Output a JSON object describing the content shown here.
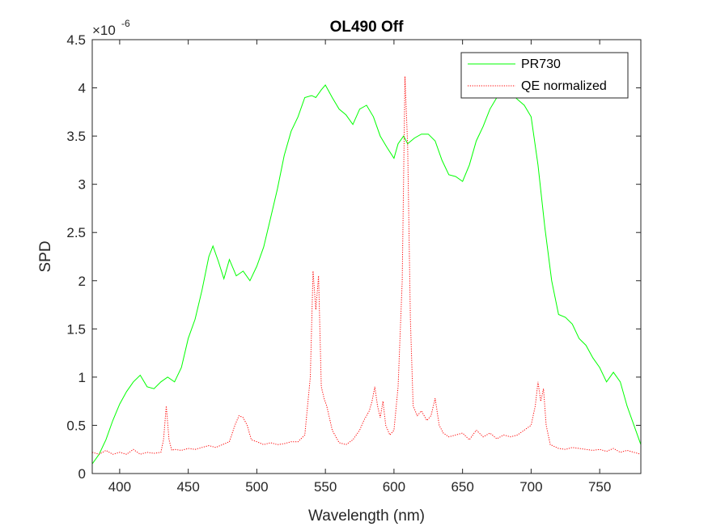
{
  "chart_data": {
    "type": "line",
    "title": "OL490 Off",
    "xlabel": "Wavelength (nm)",
    "ylabel": "SPD",
    "xlim": [
      380,
      780
    ],
    "ylim": [
      0,
      4.5
    ],
    "y_exponent_label": "×10",
    "y_exponent_power": "-6",
    "xticks": [
      400,
      450,
      500,
      550,
      600,
      650,
      700,
      750
    ],
    "xtick_labels": [
      "400",
      "450",
      "500",
      "550",
      "600",
      "650",
      "700",
      "750"
    ],
    "yticks": [
      0,
      0.5,
      1,
      1.5,
      2,
      2.5,
      3,
      3.5,
      4,
      4.5
    ],
    "ytick_labels": [
      "0",
      "0.5",
      "1",
      "1.5",
      "2",
      "2.5",
      "3",
      "3.5",
      "4",
      "4.5"
    ],
    "grid": false,
    "legend_position": "top-right",
    "series": [
      {
        "name": "PR730",
        "color": "#00ff00",
        "style": "solid",
        "x": [
          380,
          385,
          390,
          395,
          400,
          405,
          410,
          415,
          420,
          425,
          430,
          435,
          440,
          445,
          450,
          455,
          460,
          465,
          468,
          472,
          476,
          480,
          485,
          490,
          495,
          500,
          505,
          510,
          515,
          520,
          525,
          530,
          535,
          540,
          543,
          547,
          550,
          555,
          560,
          565,
          570,
          575,
          580,
          585,
          590,
          595,
          600,
          603,
          607,
          610,
          615,
          620,
          625,
          630,
          635,
          640,
          645,
          650,
          655,
          660,
          665,
          670,
          675,
          680,
          685,
          690,
          695,
          700,
          705,
          710,
          715,
          720,
          725,
          730,
          735,
          740,
          745,
          750,
          755,
          760,
          765,
          770,
          775,
          780
        ],
        "y": [
          0.1,
          0.2,
          0.35,
          0.55,
          0.72,
          0.85,
          0.95,
          1.02,
          0.9,
          0.88,
          0.95,
          1.0,
          0.95,
          1.1,
          1.4,
          1.6,
          1.9,
          2.25,
          2.36,
          2.2,
          2.02,
          2.22,
          2.05,
          2.1,
          2.0,
          2.15,
          2.35,
          2.65,
          2.95,
          3.3,
          3.55,
          3.7,
          3.9,
          3.92,
          3.9,
          3.98,
          4.03,
          3.9,
          3.78,
          3.72,
          3.62,
          3.78,
          3.82,
          3.7,
          3.5,
          3.38,
          3.27,
          3.42,
          3.5,
          3.42,
          3.48,
          3.52,
          3.52,
          3.45,
          3.25,
          3.1,
          3.08,
          3.03,
          3.2,
          3.45,
          3.6,
          3.78,
          3.9,
          4.02,
          3.95,
          3.88,
          3.82,
          3.7,
          3.2,
          2.55,
          2.0,
          1.65,
          1.62,
          1.55,
          1.4,
          1.33,
          1.2,
          1.1,
          0.95,
          1.05,
          0.95,
          0.7,
          0.5,
          0.3
        ]
      },
      {
        "name": "QE normalized",
        "color": "#ff0000",
        "style": "dotted",
        "x": [
          380,
          385,
          390,
          395,
          400,
          405,
          410,
          415,
          420,
          425,
          430,
          432,
          434,
          436,
          438,
          440,
          445,
          450,
          455,
          460,
          465,
          470,
          475,
          480,
          484,
          487,
          490,
          493,
          496,
          500,
          505,
          510,
          515,
          520,
          525,
          530,
          535,
          539,
          541,
          543,
          545,
          547,
          549,
          551,
          555,
          560,
          565,
          570,
          575,
          578,
          582,
          584,
          586,
          588,
          590,
          592,
          594,
          597,
          600,
          603,
          606,
          608,
          610,
          612,
          614,
          617,
          620,
          624,
          627,
          630,
          633,
          636,
          640,
          645,
          650,
          655,
          660,
          665,
          670,
          675,
          680,
          685,
          690,
          695,
          700,
          703,
          705,
          707,
          709,
          711,
          714,
          717,
          720,
          725,
          730,
          735,
          740,
          745,
          750,
          755,
          760,
          765,
          770,
          775,
          780
        ],
        "y": [
          0.22,
          0.2,
          0.24,
          0.2,
          0.22,
          0.2,
          0.25,
          0.2,
          0.22,
          0.21,
          0.22,
          0.35,
          0.7,
          0.35,
          0.24,
          0.25,
          0.24,
          0.26,
          0.25,
          0.27,
          0.29,
          0.27,
          0.3,
          0.33,
          0.5,
          0.6,
          0.58,
          0.5,
          0.35,
          0.33,
          0.3,
          0.32,
          0.3,
          0.31,
          0.33,
          0.33,
          0.4,
          1.0,
          2.1,
          1.7,
          2.05,
          0.9,
          0.78,
          0.7,
          0.45,
          0.32,
          0.3,
          0.35,
          0.45,
          0.55,
          0.65,
          0.75,
          0.9,
          0.7,
          0.58,
          0.75,
          0.5,
          0.4,
          0.45,
          0.9,
          2.0,
          4.12,
          3.4,
          1.6,
          0.7,
          0.6,
          0.65,
          0.55,
          0.6,
          0.78,
          0.5,
          0.42,
          0.38,
          0.4,
          0.42,
          0.35,
          0.45,
          0.38,
          0.42,
          0.36,
          0.4,
          0.38,
          0.4,
          0.45,
          0.5,
          0.7,
          0.95,
          0.75,
          0.88,
          0.5,
          0.3,
          0.28,
          0.26,
          0.25,
          0.27,
          0.26,
          0.25,
          0.24,
          0.25,
          0.23,
          0.26,
          0.22,
          0.24,
          0.22,
          0.2
        ]
      }
    ]
  }
}
